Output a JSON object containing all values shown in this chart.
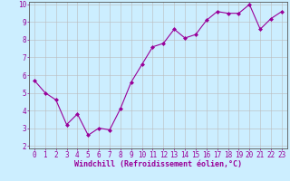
{
  "x": [
    0,
    1,
    2,
    3,
    4,
    5,
    6,
    7,
    8,
    9,
    10,
    11,
    12,
    13,
    14,
    15,
    16,
    17,
    18,
    19,
    20,
    21,
    22,
    23
  ],
  "y": [
    5.7,
    5.0,
    4.6,
    3.2,
    3.8,
    2.6,
    3.0,
    2.9,
    4.1,
    5.6,
    6.6,
    7.6,
    7.8,
    8.6,
    8.1,
    8.3,
    9.1,
    9.6,
    9.5,
    9.5,
    10.0,
    8.6,
    9.2,
    9.6
  ],
  "line_color": "#990099",
  "marker": "D",
  "marker_size": 2,
  "line_width": 0.8,
  "bg_color": "#cceeff",
  "grid_color": "#bbbbbb",
  "xlabel": "Windchill (Refroidissement éolien,°C)",
  "xlabel_fontsize": 6,
  "tick_fontsize": 5.5,
  "ylim": [
    2,
    10
  ],
  "xlim": [
    -0.5,
    23.5
  ],
  "yticks": [
    2,
    3,
    4,
    5,
    6,
    7,
    8,
    9,
    10
  ],
  "xticks": [
    0,
    1,
    2,
    3,
    4,
    5,
    6,
    7,
    8,
    9,
    10,
    11,
    12,
    13,
    14,
    15,
    16,
    17,
    18,
    19,
    20,
    21,
    22,
    23
  ]
}
